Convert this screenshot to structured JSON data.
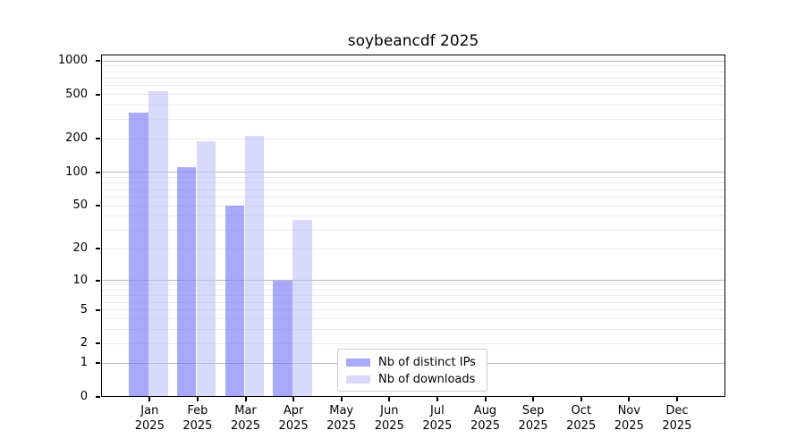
{
  "chart_data": {
    "type": "bar",
    "title": "soybeancdf 2025",
    "x_labels": [
      {
        "month": "Jan",
        "year": "2025"
      },
      {
        "month": "Feb",
        "year": "2025"
      },
      {
        "month": "Mar",
        "year": "2025"
      },
      {
        "month": "Apr",
        "year": "2025"
      },
      {
        "month": "May",
        "year": "2025"
      },
      {
        "month": "Jun",
        "year": "2025"
      },
      {
        "month": "Jul",
        "year": "2025"
      },
      {
        "month": "Aug",
        "year": "2025"
      },
      {
        "month": "Sep",
        "year": "2025"
      },
      {
        "month": "Oct",
        "year": "2025"
      },
      {
        "month": "Nov",
        "year": "2025"
      },
      {
        "month": "Dec",
        "year": "2025"
      }
    ],
    "series": [
      {
        "name": "Nb of distinct IPs",
        "color": "#7878f8",
        "opacity": 0.64,
        "values": [
          345,
          112,
          50,
          10,
          0,
          0,
          0,
          0,
          0,
          0,
          0,
          0
        ]
      },
      {
        "name": "Nb of downloads",
        "color": "#bbbbf8",
        "opacity": 0.56,
        "values": [
          535,
          192,
          215,
          37,
          0,
          0,
          0,
          0,
          0,
          0,
          0,
          0
        ]
      }
    ],
    "y_ticks": [
      0,
      1,
      2,
      5,
      10,
      20,
      50,
      100,
      200,
      500,
      1000
    ],
    "y_scale": "log10(value+1)",
    "ylim": [
      0,
      1120
    ],
    "grid": "horizontal",
    "legend_position": "inside-bottom-center",
    "colors": {
      "major_grid": "#b9b9b9",
      "minor_grid": "#eaeaea",
      "axis": "#000000",
      "text": "#000000"
    }
  }
}
